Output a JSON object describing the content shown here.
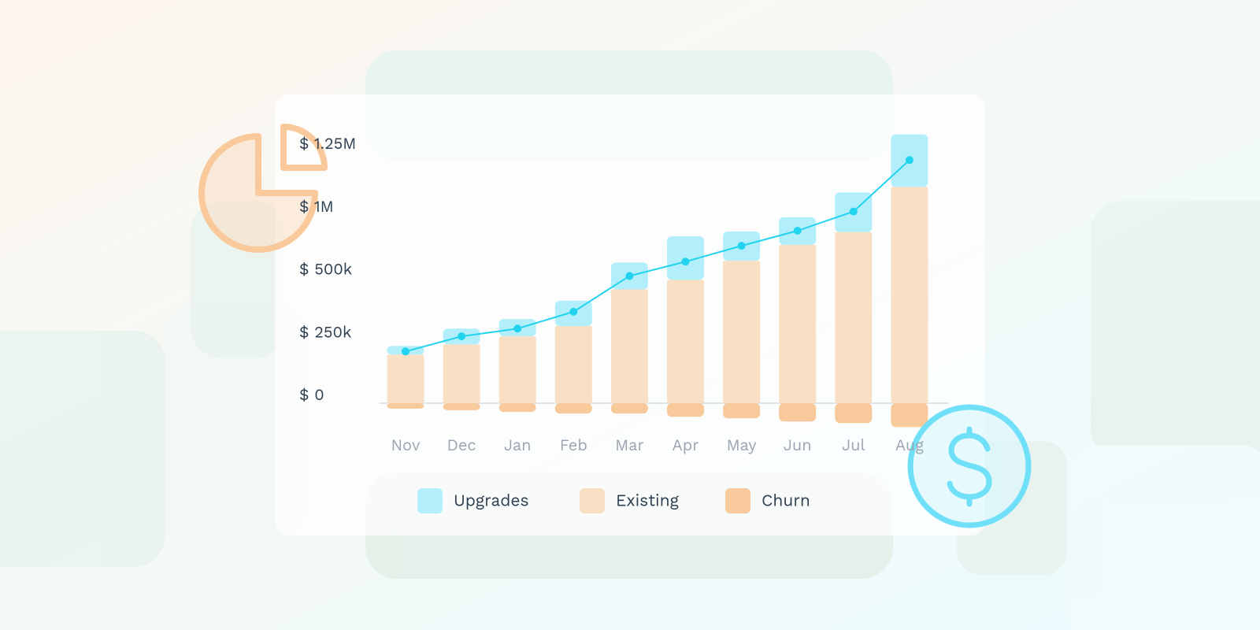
{
  "chart_data": {
    "type": "bar",
    "categories": [
      "Nov",
      "Dec",
      "Jan",
      "Feb",
      "Mar",
      "Apr",
      "May",
      "Jun",
      "Jul",
      "Aug"
    ],
    "series": [
      {
        "name": "Upgrades",
        "color": "#b3effa",
        "values": [
          35000,
          63000,
          69000,
          101000,
          167000,
          338000,
          234000,
          221000,
          228000,
          209000
        ]
      },
      {
        "name": "Existing",
        "color": "#f9dfc4",
        "values": [
          193000,
          234000,
          266000,
          307000,
          453000,
          491000,
          633000,
          760000,
          861000,
          1111000
        ]
      },
      {
        "name": "Churn",
        "color": "#f7c99b",
        "values": [
          -22000,
          -28000,
          -35000,
          -41000,
          -41000,
          -54000,
          -60000,
          -73000,
          -79000,
          -95000
        ]
      },
      {
        "color": "#22d3f0",
        "values": [
          206000,
          266000,
          297000,
          364000,
          513000,
          627000,
          753000,
          873000,
          1013000,
          1218000
        ]
      }
    ],
    "ylim": [
      -100000,
      1350000
    ],
    "yticks": [
      {
        "value": 0,
        "label": "$ 0"
      },
      {
        "value": 250000,
        "label": "$ 250k"
      },
      {
        "value": 500000,
        "label": "$ 500k"
      },
      {
        "value": 1000000,
        "label": "$ 1M"
      },
      {
        "value": 1250000,
        "label": "$ 1.25M"
      }
    ]
  }
}
